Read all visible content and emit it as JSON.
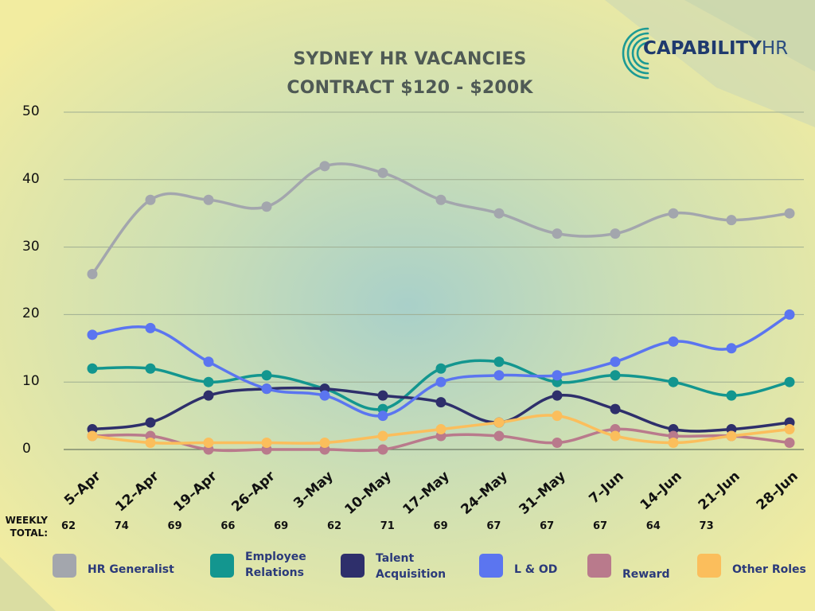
{
  "title_line1": "SYDNEY HR VACANCIES",
  "title_line2": "CONTRACT $120 - $200K",
  "logo": {
    "name": "CAPABILITY",
    "suffix": "HR"
  },
  "weekly_total_label": "WEEKLY TOTAL:",
  "weekly_totals": [
    "62",
    "74",
    "69",
    "66",
    "69",
    "62",
    "71",
    "69",
    "67",
    "67",
    "67",
    "64",
    "73"
  ],
  "colors": {
    "HR Generalist": "#a3a6ad",
    "Employee Relations": "#13968f",
    "Talent Acquisition": "#2e2f6b",
    "L & OD": "#5b75f0",
    "Reward": "#b97a8c",
    "Other Roles": "#fbbe5c"
  },
  "chart_data": {
    "type": "line",
    "title": "SYDNEY HR VACANCIES CONTRACT $120 - $200K",
    "xlabel": "",
    "ylabel": "",
    "x": [
      "5-Apr",
      "12-Apr",
      "19-Apr",
      "26-Apr",
      "3-May",
      "10-May",
      "17-May",
      "24-May",
      "31-May",
      "7-Jun",
      "14-Jun",
      "21-Jun",
      "28-Jun"
    ],
    "ylim": [
      0,
      50
    ],
    "yticks": [
      "0",
      "10",
      "20",
      "30",
      "40",
      "50"
    ],
    "grid": "horizontal",
    "legend_position": "bottom",
    "series": [
      {
        "name": "HR Generalist",
        "values": [
          26,
          37,
          37,
          36,
          42,
          41,
          37,
          35,
          32,
          32,
          35,
          34,
          35
        ]
      },
      {
        "name": "Employee Relations",
        "values": [
          12,
          12,
          10,
          11,
          9,
          6,
          12,
          13,
          10,
          11,
          10,
          8,
          10
        ]
      },
      {
        "name": "Talent Acquisition",
        "values": [
          3,
          4,
          8,
          9,
          9,
          8,
          7,
          4,
          8,
          6,
          3,
          3,
          4
        ]
      },
      {
        "name": "L & OD",
        "values": [
          17,
          18,
          13,
          9,
          8,
          5,
          10,
          11,
          11,
          13,
          16,
          15,
          20
        ]
      },
      {
        "name": "Reward",
        "values": [
          2,
          2,
          0,
          0,
          0,
          0,
          2,
          2,
          1,
          3,
          2,
          2,
          1
        ]
      },
      {
        "name": "Other Roles",
        "values": [
          2,
          1,
          1,
          1,
          1,
          2,
          3,
          4,
          5,
          2,
          1,
          2,
          3
        ]
      }
    ]
  },
  "legend_labels": [
    "HR Generalist",
    "Employee Relations",
    "Talent Acquisition",
    "L & OD",
    "Reward",
    "Other Roles"
  ]
}
